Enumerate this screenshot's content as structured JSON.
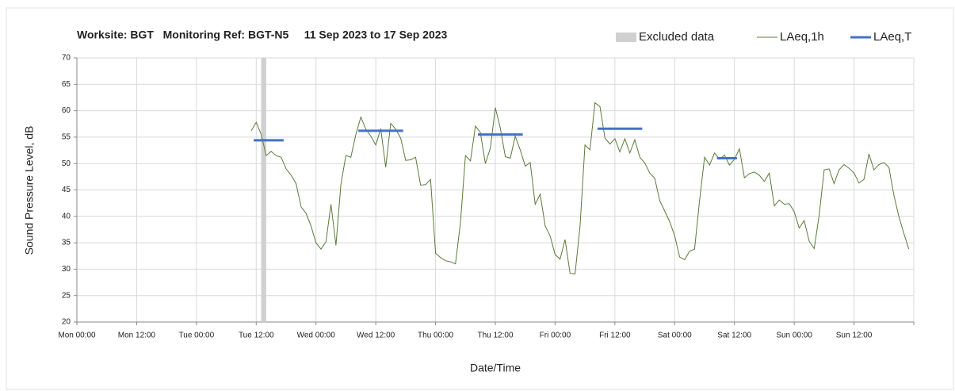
{
  "chart_data": {
    "type": "line",
    "title": "Worksite: BGT   Monitoring Ref: BGT-N5     11 Sep 2023 to 17 Sep 2023",
    "x_label": "Date/Time",
    "y_label": "Sound Pressure Level, dB",
    "xlim": [
      0,
      168
    ],
    "xticks": [
      {
        "value": 0,
        "label": "Mon 00:00"
      },
      {
        "value": 12,
        "label": "Mon 12:00"
      },
      {
        "value": 24,
        "label": "Tue 00:00"
      },
      {
        "value": 36,
        "label": "Tue 12:00"
      },
      {
        "value": 48,
        "label": "Wed 00:00"
      },
      {
        "value": 60,
        "label": "Wed 12:00"
      },
      {
        "value": 72,
        "label": "Thu 00:00"
      },
      {
        "value": 84,
        "label": "Thu 12:00"
      },
      {
        "value": 96,
        "label": "Fri 00:00"
      },
      {
        "value": 108,
        "label": "Fri 12:00"
      },
      {
        "value": 120,
        "label": "Sat 00:00"
      },
      {
        "value": 132,
        "label": "Sat 12:00"
      },
      {
        "value": 144,
        "label": "Sun 00:00"
      },
      {
        "value": 156,
        "label": "Sun 12:00"
      }
    ],
    "ylim": [
      20,
      70
    ],
    "yticks": [
      20,
      25,
      30,
      35,
      40,
      45,
      50,
      55,
      60,
      65,
      70
    ],
    "grid": true,
    "legend": "top-right",
    "excluded": {
      "name": "Excluded data",
      "color": "#d0d0d0",
      "x": [
        37,
        38
      ]
    },
    "series": [
      {
        "name": "LAeq,1h",
        "color": "#5a7a3a",
        "x": [
          35,
          36,
          37,
          38,
          39,
          40,
          41,
          42,
          43,
          44,
          45,
          46,
          47,
          48,
          49,
          50,
          51,
          52,
          53,
          54,
          55,
          56,
          57,
          58,
          59,
          60,
          61,
          62,
          63,
          64,
          65,
          66,
          67,
          68,
          69,
          70,
          71,
          72,
          73,
          74,
          75,
          76,
          77,
          78,
          79,
          80,
          81,
          82,
          83,
          84,
          85,
          86,
          87,
          88,
          89,
          90,
          91,
          92,
          93,
          94,
          95,
          96,
          97,
          98,
          99,
          100,
          101,
          102,
          103,
          104,
          105,
          106,
          107,
          108,
          109,
          110,
          111,
          112,
          113,
          114,
          115,
          116,
          117,
          118,
          119,
          120,
          121,
          122,
          123,
          124,
          125,
          126,
          127,
          128,
          129,
          130,
          131,
          132,
          133,
          134,
          135,
          136,
          137,
          138,
          139,
          140,
          141,
          142,
          143,
          144,
          145,
          146,
          147,
          148,
          149,
          150,
          151,
          152,
          153,
          154,
          155,
          156,
          157,
          158,
          159,
          160,
          161,
          162,
          163,
          164,
          165,
          166,
          167
        ],
        "values": [
          56.2,
          57.8,
          55.5,
          51.5,
          52.3,
          51.5,
          51.2,
          49,
          47.8,
          46.2,
          41.8,
          40.6,
          38.2,
          35,
          33.8,
          35.2,
          42.3,
          34.5,
          46,
          51.5,
          51.2,
          55.5,
          58.8,
          56.5,
          55.2,
          53.5,
          56.6,
          49.3,
          57.6,
          56.5,
          54.8,
          50.6,
          50.7,
          51.2,
          45.9,
          46,
          47,
          33,
          32.2,
          31.6,
          31.4,
          31,
          38.8,
          51.5,
          50.5,
          57.1,
          55.9,
          50,
          52.9,
          60.6,
          56.7,
          51.3,
          51,
          55.2,
          52.6,
          49.5,
          50.2,
          42.3,
          44.2,
          38.2,
          36.3,
          32.8,
          31.9,
          35.6,
          29.2,
          29.1,
          38.2,
          53.5,
          52.6,
          61.5,
          60.8,
          54.8,
          53.7,
          54.7,
          52.2,
          54.7,
          52,
          54.5,
          51.2,
          50.1,
          48.2,
          47.2,
          43,
          41,
          39,
          36.3,
          32.3,
          31.8,
          33.4,
          33.8,
          43,
          51.2,
          49.7,
          52,
          50.8,
          51.6,
          49.7,
          50.8,
          52.8,
          47.3,
          48.1,
          48.4,
          47.8,
          46.6,
          48.2,
          42,
          43.1,
          42.3,
          42.4,
          40.9,
          37.8,
          39.2,
          35.3,
          33.9,
          40.2,
          48.8,
          49,
          46.2,
          48.8,
          49.8,
          49.1,
          48.2,
          46.3,
          47,
          51.8,
          48.8,
          49.8,
          50.2,
          49.3,
          44,
          40,
          36.8,
          33.8
        ]
      },
      {
        "name": "LAeq,T",
        "color": "#4472c4",
        "x": [
          35.5,
          41.5,
          41.5,
          56.5,
          65.5,
          65.5,
          80.5,
          89.5,
          89.5,
          104.5,
          113.5,
          113.5,
          128.5,
          132.5
        ],
        "values": [
          54.4,
          54.4,
          null,
          56.2,
          56.2,
          null,
          55.5,
          55.5,
          null,
          56.6,
          56.6,
          null,
          51,
          51
        ]
      }
    ]
  }
}
